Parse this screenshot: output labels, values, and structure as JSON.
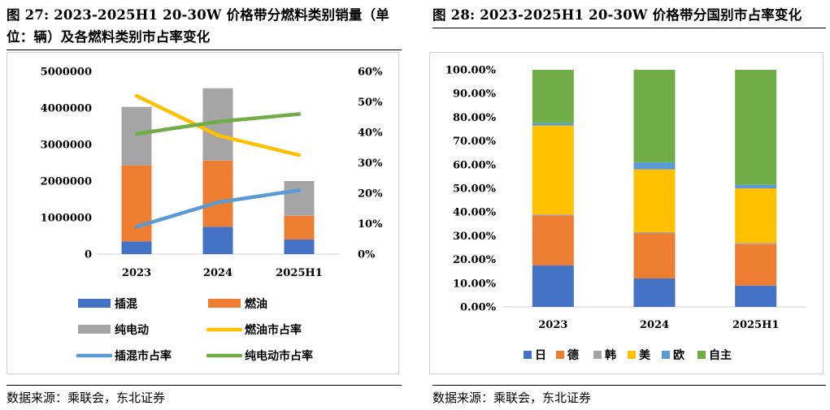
{
  "left": {
    "title": "图 27: 2023-2025H1 20-30W 价格带分燃料类别销量（单位：辆）及各燃料类别市占率变化",
    "source": "数据来源：乘联会，东北证券"
  },
  "right": {
    "title": "图 28: 2023-2025H1 20-30W 价格带分国别市占率变化",
    "source": "数据来源：乘联会，东北证券"
  },
  "chart_data": [
    {
      "type": "bar",
      "stacked": true,
      "categories": [
        "2023",
        "2024",
        "2025H1"
      ],
      "series": [
        {
          "name": "插混",
          "values": [
            350000,
            750000,
            400000
          ],
          "color": "#4472c4"
        },
        {
          "name": "燃油",
          "values": [
            2080000,
            1810000,
            650000
          ],
          "color": "#ed7d31"
        },
        {
          "name": "纯电动",
          "values": [
            1600000,
            1980000,
            950000
          ],
          "color": "#a5a5a5"
        }
      ],
      "lines": [
        {
          "name": "燃油市占率",
          "values": [
            52,
            39,
            32.5
          ],
          "color": "#ffc000",
          "axis": "right"
        },
        {
          "name": "插混市占率",
          "values": [
            9,
            17,
            21
          ],
          "color": "#5b9bd5",
          "axis": "right"
        },
        {
          "name": "纯电动市占率",
          "values": [
            39.5,
            43.5,
            46
          ],
          "color": "#70ad47",
          "axis": "right"
        }
      ],
      "ylim": [
        0,
        5000000
      ],
      "yticks": [
        "0",
        "1000000",
        "2000000",
        "3000000",
        "4000000",
        "5000000"
      ],
      "y2lim": [
        0,
        60
      ],
      "y2ticks": [
        "0%",
        "10%",
        "20%",
        "30%",
        "40%",
        "50%",
        "60%"
      ],
      "legend_position": "bottom"
    },
    {
      "type": "bar",
      "stacked": true,
      "categories": [
        "2023",
        "2024",
        "2025H1"
      ],
      "series": [
        {
          "name": "日",
          "values": [
            17.5,
            12,
            9
          ],
          "color": "#4472c4"
        },
        {
          "name": "德",
          "values": [
            21,
            19,
            17.5
          ],
          "color": "#ed7d31"
        },
        {
          "name": "韩",
          "values": [
            0.5,
            0.5,
            0.5
          ],
          "color": "#a5a5a5"
        },
        {
          "name": "美",
          "values": [
            37.5,
            26.5,
            23
          ],
          "color": "#ffc000"
        },
        {
          "name": "欧",
          "values": [
            1,
            3,
            1.5
          ],
          "color": "#5b9bd5"
        },
        {
          "name": "自主",
          "values": [
            22.5,
            39,
            48.5
          ],
          "color": "#70ad47"
        }
      ],
      "ylim": [
        0,
        100
      ],
      "yticks": [
        "0.00%",
        "10.00%",
        "20.00%",
        "30.00%",
        "40.00%",
        "50.00%",
        "60.00%",
        "70.00%",
        "80.00%",
        "90.00%",
        "100.00%"
      ],
      "legend_position": "bottom"
    }
  ]
}
